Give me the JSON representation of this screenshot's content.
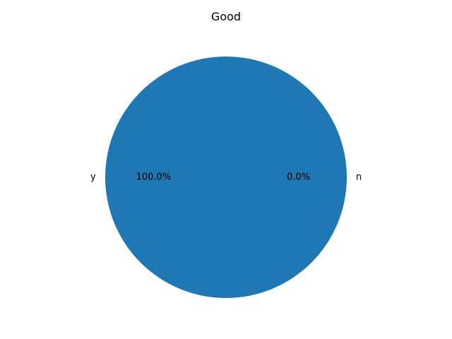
{
  "chart_data": {
    "type": "pie",
    "title": "Good",
    "categories": [
      "y",
      "n"
    ],
    "values": [
      100.0,
      0.0
    ],
    "percent_labels": [
      "100.0%",
      "0.0%"
    ],
    "colors": [
      "#1f77b4",
      "#ff7f0e"
    ],
    "legend": "none"
  }
}
